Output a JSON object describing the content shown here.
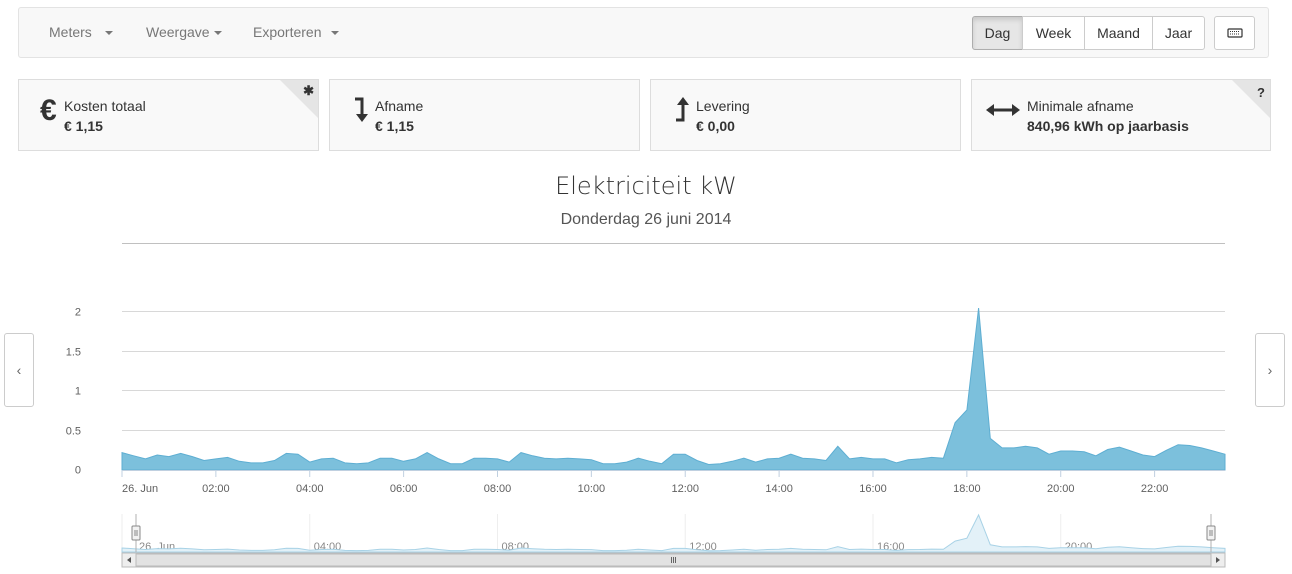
{
  "navbar": {
    "menus": [
      "Meters",
      "Weergave",
      "Exporteren"
    ],
    "periods": [
      "Dag",
      "Week",
      "Maand",
      "Jaar"
    ],
    "active_period": "Dag"
  },
  "panels": [
    {
      "title": "Kosten totaal",
      "value": "€ 1,15",
      "icon": "euro-icon",
      "corner": "settings"
    },
    {
      "title": "Afname",
      "value": "€ 1,15",
      "icon": "arrow-down-icon"
    },
    {
      "title": "Levering",
      "value": "€ 0,00",
      "icon": "arrow-up-icon"
    },
    {
      "title": "Minimale afname",
      "value": "840,96 kWh op jaarbasis",
      "icon": "arrows-horizontal-icon",
      "corner": "help"
    }
  ],
  "corner_glyphs": {
    "settings": "✱",
    "help": "?"
  },
  "chart_data": {
    "type": "area",
    "title": "Elektriciteit kW",
    "subtitle": "Donderdag 26 juni 2014",
    "color": "#7cc0dc",
    "ylim": [
      0,
      2.5
    ],
    "yticks": [
      {
        "v": 0,
        "label": "0"
      },
      {
        "v": 0.5,
        "label": "0.5"
      },
      {
        "v": 1,
        "label": "1"
      },
      {
        "v": 1.5,
        "label": "1.5"
      },
      {
        "v": 2,
        "label": "2"
      }
    ],
    "xlim": [
      0,
      23.5
    ],
    "xticks": [
      {
        "h": 0,
        "label": "26. Jun"
      },
      {
        "h": 2,
        "label": "02:00"
      },
      {
        "h": 4,
        "label": "04:00"
      },
      {
        "h": 6,
        "label": "06:00"
      },
      {
        "h": 8,
        "label": "08:00"
      },
      {
        "h": 10,
        "label": "10:00"
      },
      {
        "h": 12,
        "label": "12:00"
      },
      {
        "h": 14,
        "label": "14:00"
      },
      {
        "h": 16,
        "label": "16:00"
      },
      {
        "h": 18,
        "label": "18:00"
      },
      {
        "h": 20,
        "label": "20:00"
      },
      {
        "h": 22,
        "label": "22:00"
      }
    ],
    "navigator_xticks": [
      {
        "h": 0,
        "label": "26. Jun"
      },
      {
        "h": 4,
        "label": "04:00"
      },
      {
        "h": 8,
        "label": "08:00"
      },
      {
        "h": 12,
        "label": "12:00"
      },
      {
        "h": 16,
        "label": "16:00"
      },
      {
        "h": 20,
        "label": "20:00"
      }
    ],
    "series": [
      {
        "x": [
          0,
          0.25,
          0.5,
          0.75,
          1,
          1.25,
          1.5,
          1.75,
          2,
          2.25,
          2.5,
          2.75,
          3,
          3.25,
          3.5,
          3.75,
          4,
          4.25,
          4.5,
          4.75,
          5,
          5.25,
          5.5,
          5.75,
          6,
          6.25,
          6.5,
          6.75,
          7,
          7.25,
          7.5,
          7.75,
          8,
          8.25,
          8.5,
          8.75,
          9,
          9.25,
          9.5,
          9.75,
          10,
          10.25,
          10.5,
          10.75,
          11,
          11.25,
          11.5,
          11.75,
          12,
          12.25,
          12.5,
          12.75,
          13,
          13.25,
          13.5,
          13.75,
          14,
          14.25,
          14.5,
          14.75,
          15,
          15.25,
          15.5,
          15.75,
          16,
          16.25,
          16.5,
          16.75,
          17,
          17.25,
          17.5,
          17.75,
          18,
          18.25,
          18.5,
          18.75,
          19,
          19.25,
          19.5,
          19.75,
          20,
          20.25,
          20.5,
          20.75,
          21,
          21.25,
          21.5,
          21.75,
          22,
          22.25,
          22.5,
          22.75,
          23,
          23.25,
          23.5
        ],
        "y": [
          0.22,
          0.18,
          0.14,
          0.19,
          0.17,
          0.21,
          0.17,
          0.12,
          0.14,
          0.16,
          0.11,
          0.09,
          0.09,
          0.12,
          0.21,
          0.2,
          0.1,
          0.14,
          0.15,
          0.09,
          0.08,
          0.09,
          0.15,
          0.15,
          0.11,
          0.14,
          0.22,
          0.14,
          0.08,
          0.08,
          0.15,
          0.15,
          0.14,
          0.1,
          0.22,
          0.18,
          0.15,
          0.14,
          0.15,
          0.14,
          0.13,
          0.08,
          0.08,
          0.1,
          0.15,
          0.11,
          0.08,
          0.2,
          0.2,
          0.12,
          0.07,
          0.08,
          0.11,
          0.15,
          0.1,
          0.14,
          0.15,
          0.2,
          0.15,
          0.14,
          0.12,
          0.3,
          0.14,
          0.16,
          0.14,
          0.14,
          0.09,
          0.13,
          0.14,
          0.16,
          0.15,
          0.6,
          0.76,
          2.05,
          0.4,
          0.28,
          0.28,
          0.3,
          0.28,
          0.2,
          0.24,
          0.24,
          0.23,
          0.18,
          0.26,
          0.29,
          0.24,
          0.19,
          0.17,
          0.25,
          0.32,
          0.31,
          0.28,
          0.24,
          0.2
        ]
      }
    ]
  }
}
